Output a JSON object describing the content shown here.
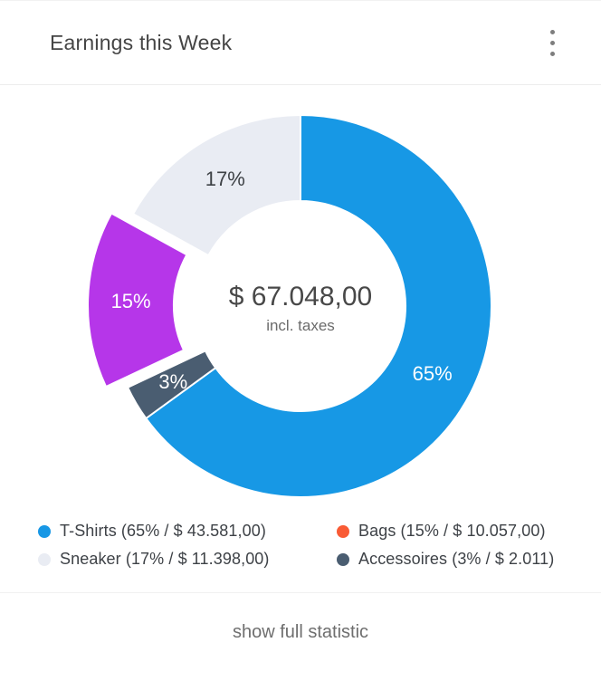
{
  "header": {
    "title": "Earnings this Week"
  },
  "chart_data": {
    "type": "pie",
    "variant": "donut",
    "title": "Earnings this Week",
    "start_angle_deg": 0,
    "direction": "clockwise",
    "center": {
      "amount": "$ 67.048,00",
      "note": "incl. taxes"
    },
    "slices": [
      {
        "label": "T-Shirts",
        "percent": 65,
        "amount": "$ 43.581,00",
        "color": "#1798e5",
        "label_text": "65%",
        "label_color": "#ffffff",
        "exploded": false
      },
      {
        "label": "Accessoires",
        "percent": 3,
        "amount": "$ 2.011",
        "color": "#4a5d71",
        "label_text": "3%",
        "label_color": "#ffffff",
        "exploded": false
      },
      {
        "label": "Bags",
        "percent": 15,
        "amount": "$ 10.057,00",
        "color": "#b636e9",
        "label_text": "15%",
        "label_color": "#ffffff",
        "exploded": true
      },
      {
        "label": "Sneaker",
        "percent": 17,
        "amount": "$ 11.398,00",
        "color": "#e9ecf3",
        "label_text": "17%",
        "label_color": "#3d4145",
        "exploded": false
      }
    ],
    "legend_position": "bottom",
    "legend": [
      {
        "label": "T-Shirts (65% / $ 43.581,00)",
        "dot_color": "#1797e5"
      },
      {
        "label": "Bags (15% / $ 10.057,00)",
        "dot_color": "#f95b35"
      },
      {
        "label": "Sneaker (17% / $ 11.398,00)",
        "dot_color": "#e9ecf3"
      },
      {
        "label": "Accessoires (3% / $ 2.011)",
        "dot_color": "#4a5d71"
      }
    ]
  },
  "footer": {
    "action_label": "show full statistic"
  }
}
